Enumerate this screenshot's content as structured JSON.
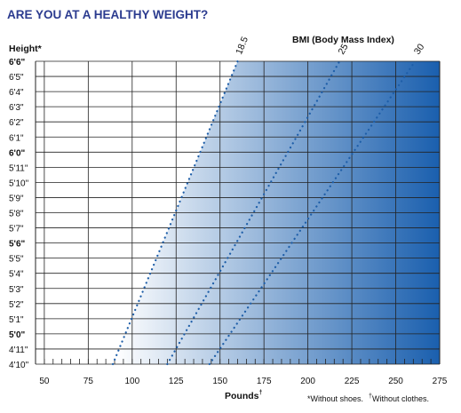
{
  "title": "ARE YOU AT A HEALTHY WEIGHT?",
  "colors": {
    "title": "#2b3b8f",
    "dots": "#1e5ea8",
    "gradient_start": "#ffffff",
    "gradient_end": "#1a5fae",
    "grid": "#222222"
  },
  "footnote": {
    "shoes_mark": "*",
    "shoes": "Without shoes.",
    "clothes_mark": "†",
    "clothes": "Without clothes."
  },
  "chart_data": {
    "type": "line",
    "title": "ARE YOU AT A HEALTHY WEIGHT?",
    "xlabel": "Pounds",
    "xlabel_mark": "†",
    "ylabel": "Height*",
    "bmi_title": "BMI (Body Mass Index)",
    "xlim": [
      45,
      275
    ],
    "x_ticks": [
      50,
      75,
      100,
      125,
      150,
      175,
      200,
      225,
      250,
      275
    ],
    "x_tick_labels": [
      "50",
      "75",
      "100",
      "125",
      "150",
      "175",
      "200",
      "225",
      "250",
      "275"
    ],
    "x_minor_step": 5,
    "height_inches": [
      58,
      59,
      60,
      61,
      62,
      63,
      64,
      65,
      66,
      67,
      68,
      69,
      70,
      71,
      72,
      73,
      74,
      75,
      76,
      77,
      78
    ],
    "height_labels": [
      "4'10\"",
      "4'11\"",
      "5'0\"",
      "5'1\"",
      "5'2\"",
      "5'3\"",
      "5'4\"",
      "5'5\"",
      "5'6\"",
      "5'7\"",
      "5'8\"",
      "5'9\"",
      "5'10\"",
      "5'11\"",
      "6'0\"",
      "6'1\"",
      "6'2\"",
      "6'3\"",
      "6'4\"",
      "6'5\"",
      "6'6\""
    ],
    "bold_heights": [
      "5'0\"",
      "5'6\"",
      "6'0\"",
      "6'6\""
    ],
    "series": [
      {
        "name": "18.5",
        "points": [
          [
            89,
            58
          ],
          [
            160,
            78
          ]
        ]
      },
      {
        "name": "25",
        "points": [
          [
            120,
            58
          ],
          [
            218,
            78
          ]
        ]
      },
      {
        "name": "30",
        "points": [
          [
            144,
            58
          ],
          [
            261,
            78
          ]
        ]
      }
    ],
    "shading": "gradient starting at BMI 18.5, deepening toward heavier weights",
    "grid": true
  }
}
